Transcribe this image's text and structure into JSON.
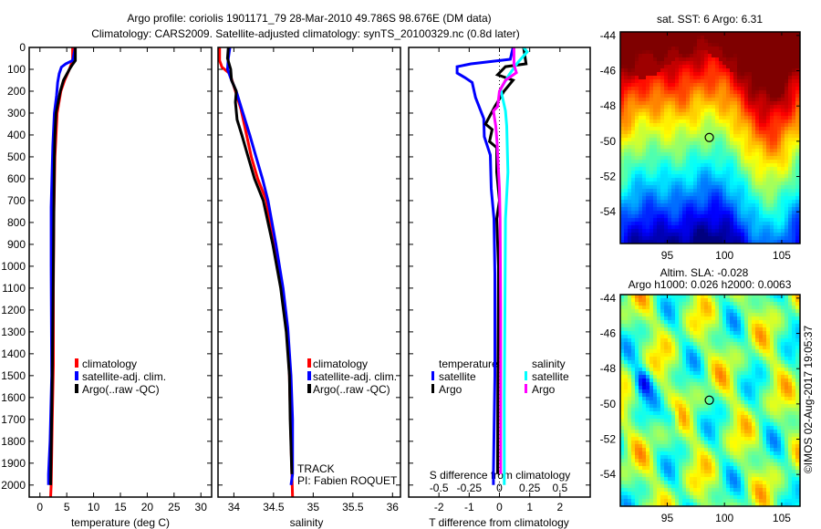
{
  "title": {
    "line1": "Argo profile: coriolis 1901171_79 28-Mar-2010 49.786S 98.676E (DM data)",
    "line2": "Climatology: CARS2009. Satellite-adjusted climatology: synTS_20100329.nc (0.8d later)"
  },
  "colors": {
    "climatology": "#ff0000",
    "satellite": "#0000ff",
    "argo": "#000000",
    "s_satellite": "#00ffff",
    "s_argo": "#ff00ff"
  },
  "chart_data": [
    {
      "type": "line",
      "name": "temperature-profile",
      "xlabel": "temperature (deg C)",
      "ylabel": "",
      "xlim": [
        -2,
        32
      ],
      "ylim": [
        2055,
        0
      ],
      "xticks": [
        "0",
        "5",
        "10",
        "15",
        "20",
        "25",
        "30"
      ],
      "yticks": [
        "0",
        "100",
        "200",
        "300",
        "400",
        "500",
        "600",
        "700",
        "800",
        "900",
        "1000",
        "1100",
        "1200",
        "1300",
        "1400",
        "1500",
        "1600",
        "1700",
        "1800",
        "1900",
        "2000"
      ],
      "legend": [
        "climatology",
        "satellite-adj. clim.",
        "Argo(..raw -QC)"
      ],
      "series": [
        {
          "name": "climatology",
          "color": "#ff0000",
          "depth": [
            0,
            60,
            100,
            150,
            200,
            300,
            400,
            500,
            750,
            1100,
            1450,
            1700,
            2000,
            2055
          ],
          "values": [
            6.1,
            6.1,
            5.5,
            4.6,
            3.9,
            3.2,
            3.0,
            2.8,
            2.6,
            2.5,
            2.5,
            2.3,
            2.1,
            2.0
          ]
        },
        {
          "name": "satellite-adj. clim.",
          "color": "#0000ff",
          "depth": [
            0,
            60,
            75,
            90,
            120,
            160,
            220,
            300,
            450,
            730,
            1000,
            1500,
            1800,
            1950,
            2000
          ],
          "values": [
            6.6,
            6.1,
            4.8,
            4.0,
            3.6,
            3.3,
            3.1,
            2.7,
            2.4,
            2.1,
            2.1,
            2.2,
            1.9,
            1.6,
            1.6
          ]
        },
        {
          "name": "Argo(..raw -QC)",
          "color": "#000000",
          "depth": [
            0,
            60,
            80,
            100,
            150,
            200,
            300,
            400,
            500,
            700,
            1000,
            1500,
            2000
          ],
          "values": [
            6.6,
            6.6,
            6.0,
            5.5,
            4.4,
            3.8,
            3.0,
            2.8,
            2.7,
            2.6,
            2.5,
            2.3,
            2.0
          ]
        }
      ]
    },
    {
      "type": "line",
      "name": "salinity-profile",
      "xlabel": "salinity",
      "xlim": [
        33.8,
        36.1
      ],
      "ylim": [
        2055,
        0
      ],
      "xticks": [
        "34",
        "34.5",
        "35",
        "35.5",
        "36"
      ],
      "legend": [
        "climatology",
        "satellite-adj. clim.",
        "Argo(..raw -QC)"
      ],
      "annotation": [
        "TRACK",
        "PI: Fabien ROQUET"
      ],
      "series": [
        {
          "name": "climatology",
          "color": "#ff0000",
          "depth": [
            0,
            60,
            90,
            120,
            200,
            283,
            400,
            500,
            600,
            700,
            900,
            1100,
            1283,
            1500,
            1800,
            2055
          ],
          "values": [
            33.82,
            33.82,
            33.85,
            33.95,
            34.02,
            34.09,
            34.16,
            34.22,
            34.3,
            34.41,
            34.5,
            34.6,
            34.67,
            34.7,
            34.72,
            34.74
          ]
        },
        {
          "name": "satellite-adj. clim.",
          "color": "#0000ff",
          "depth": [
            0,
            50,
            100,
            150,
            200,
            283,
            400,
            500,
            600,
            700,
            900,
            1100,
            1283,
            1500,
            1700,
            1950,
            2000
          ],
          "values": [
            33.95,
            33.93,
            33.92,
            33.97,
            34.03,
            34.1,
            34.2,
            34.28,
            34.36,
            34.43,
            34.53,
            34.62,
            34.68,
            34.72,
            34.74,
            34.74,
            34.72
          ]
        },
        {
          "name": "Argo(..raw -QC)",
          "color": "#000000",
          "depth": [
            0,
            50,
            100,
            150,
            200,
            250,
            330,
            400,
            500,
            600,
            700,
            900,
            1100,
            1300,
            1500,
            1700,
            1950
          ],
          "values": [
            33.93,
            33.92,
            33.96,
            33.97,
            34.03,
            34.02,
            34.04,
            34.1,
            34.18,
            34.26,
            34.37,
            34.49,
            34.59,
            34.66,
            34.7,
            34.71,
            34.73
          ]
        }
      ]
    },
    {
      "type": "line",
      "name": "difference-profile",
      "xlabel": "T difference from climatology",
      "x2label": "S difference from climatology",
      "xlim": [
        -3,
        3
      ],
      "x2lim": [
        -0.75,
        0.75
      ],
      "ylim": [
        2055,
        0
      ],
      "xticks": [
        "-2",
        "-1",
        "0",
        "1",
        "2"
      ],
      "x2ticks": [
        "-0.5",
        "-0.25",
        "0",
        "0.25",
        "0.5"
      ],
      "legend": {
        "temperature_title": "temperature:",
        "salinity_title": "salinity",
        "t_satellite": "satellite",
        "t_argo": "Argo",
        "s_satellite": "satellite",
        "s_argo": "Argo"
      },
      "series": [
        {
          "name": "T satellite",
          "axis": "T",
          "color": "#0000ff",
          "depth": [
            0,
            54,
            75,
            88,
            117,
            137,
            160,
            229,
            325,
            408,
            492,
            645,
            783,
            1033,
            1500,
            1950,
            2000
          ],
          "values": [
            0.45,
            0.36,
            -0.94,
            -1.4,
            -1.4,
            -1.15,
            -0.9,
            -0.79,
            -0.52,
            -0.5,
            -0.3,
            -0.27,
            -0.18,
            -0.15,
            -0.15,
            -0.2,
            -0.2
          ]
        },
        {
          "name": "T Argo",
          "axis": "T",
          "color": "#000000",
          "depth": [
            0,
            20,
            75,
            88,
            125,
            150,
            200,
            270,
            350,
            375,
            430,
            458,
            570,
            700,
            783,
            1000,
            1500,
            1950
          ],
          "values": [
            0.8,
            0.82,
            0.88,
            0.2,
            -0.06,
            0.45,
            0.15,
            -0.15,
            -0.46,
            -0.24,
            -0.33,
            -0.09,
            -0.09,
            0.0,
            -0.09,
            -0.03,
            -0.05,
            -0.06
          ]
        },
        {
          "name": "S satellite",
          "axis": "S",
          "color": "#00ffff",
          "depth": [
            0,
            20,
            70,
            125,
            190,
            290,
            360,
            570,
            783,
            1200,
            1600,
            2000
          ],
          "values": [
            0.2,
            0.23,
            0.15,
            0.08,
            0.01,
            0.05,
            0.06,
            0.07,
            0.05,
            0.045,
            0.04,
            0.04
          ]
        },
        {
          "name": "S Argo",
          "axis": "S",
          "color": "#ff00ff",
          "depth": [
            0,
            80,
            115,
            150,
            200,
            270,
            290,
            360,
            430,
            645,
            783,
            1200,
            1600,
            1950
          ],
          "values": [
            0.12,
            0.12,
            0.14,
            0.05,
            0.0,
            -0.015,
            -0.05,
            -0.03,
            -0.02,
            0.0,
            0.005,
            0.01,
            0.01,
            0.01
          ]
        }
      ]
    },
    {
      "type": "heatmap",
      "name": "sst-map",
      "title": "sat. SST: 6 Argo: 6.31",
      "xlim": [
        90.9,
        106.6
      ],
      "ylim": [
        -55.8,
        -43.8
      ],
      "xticks": [
        "95",
        "100",
        "105"
      ],
      "yticks": [
        "-44",
        "-46",
        "-48",
        "-50",
        "-52",
        "-54"
      ],
      "argo_position": {
        "lon": 98.676,
        "lat": -49.786
      }
    },
    {
      "type": "heatmap",
      "name": "sla-map",
      "title": "Altim. SLA: -0.028",
      "subtitle": "Argo h1000: 0.026 h2000: 0.0063",
      "xlim": [
        90.9,
        106.6
      ],
      "ylim": [
        -55.8,
        -43.8
      ],
      "xticks": [
        "95",
        "100",
        "105"
      ],
      "yticks": [
        "-44",
        "-46",
        "-48",
        "-50",
        "-52",
        "-54"
      ],
      "argo_position": {
        "lon": 98.676,
        "lat": -49.786
      }
    }
  ],
  "credit": "©IMOS 02-Aug-2017 19:05:37"
}
